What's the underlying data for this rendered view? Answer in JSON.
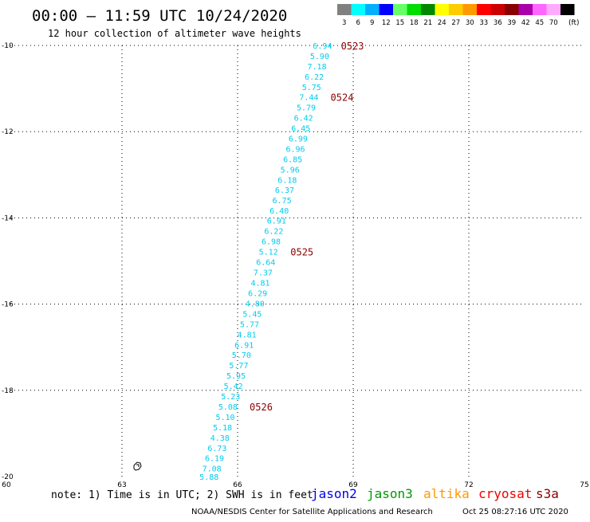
{
  "header": {
    "title": "00:00 – 11:59 UTC 10/24/2020",
    "subtitle": "12 hour collection of altimeter wave heights"
  },
  "color_scale": {
    "unit_label": "(ft)",
    "entries": [
      {
        "label": "3",
        "color": "#808080"
      },
      {
        "label": "6",
        "color": "#00ffff"
      },
      {
        "label": "9",
        "color": "#00b0ff"
      },
      {
        "label": "12",
        "color": "#0000ff"
      },
      {
        "label": "15",
        "color": "#66ff66"
      },
      {
        "label": "18",
        "color": "#00dd00"
      },
      {
        "label": "21",
        "color": "#008800"
      },
      {
        "label": "24",
        "color": "#ffff00"
      },
      {
        "label": "27",
        "color": "#ffcc00"
      },
      {
        "label": "30",
        "color": "#ff9900"
      },
      {
        "label": "33",
        "color": "#ff0000"
      },
      {
        "label": "36",
        "color": "#cc0000"
      },
      {
        "label": "39",
        "color": "#880000"
      },
      {
        "label": "42",
        "color": "#aa00aa"
      },
      {
        "label": "45",
        "color": "#ff66ff"
      },
      {
        "label": "70",
        "color": "#ffaaff"
      },
      {
        "label": "",
        "color": "#000000"
      }
    ]
  },
  "chart_data": {
    "type": "scatter",
    "xlim": [
      60,
      75
    ],
    "ylim": [
      -20,
      -10
    ],
    "x_ticks": [
      {
        "value": 60,
        "label": "60"
      },
      {
        "value": 63,
        "label": "63"
      },
      {
        "value": 66,
        "label": "66"
      },
      {
        "value": 69,
        "label": "69"
      },
      {
        "value": 72,
        "label": "72"
      },
      {
        "value": 75,
        "label": "75"
      }
    ],
    "y_ticks": [
      {
        "value": -10,
        "label": "-10"
      },
      {
        "value": -12,
        "label": "-12"
      },
      {
        "value": -14,
        "label": "-14"
      },
      {
        "value": -16,
        "label": "-16"
      },
      {
        "value": -18,
        "label": "-18"
      },
      {
        "value": -20,
        "label": "-20"
      }
    ],
    "grid": true,
    "wave_color": "#00ccee",
    "time_color": "#8b0000",
    "wave_heights": [
      {
        "lon": 68.2,
        "lat": -10.0,
        "label": "6.94"
      },
      {
        "lon": 68.13,
        "lat": -10.24,
        "label": "5.90"
      },
      {
        "lon": 68.06,
        "lat": -10.48,
        "label": "7.18"
      },
      {
        "lon": 67.99,
        "lat": -10.72,
        "label": "6.22"
      },
      {
        "lon": 67.92,
        "lat": -10.96,
        "label": "5.75"
      },
      {
        "lon": 67.85,
        "lat": -11.19,
        "label": "7.44"
      },
      {
        "lon": 67.78,
        "lat": -11.43,
        "label": "5.79"
      },
      {
        "lon": 67.71,
        "lat": -11.67,
        "label": "6.42"
      },
      {
        "lon": 67.64,
        "lat": -11.91,
        "label": "6.45"
      },
      {
        "lon": 67.57,
        "lat": -12.15,
        "label": "6.99"
      },
      {
        "lon": 67.5,
        "lat": -12.39,
        "label": "6.96"
      },
      {
        "lon": 67.43,
        "lat": -12.63,
        "label": "6.85"
      },
      {
        "lon": 67.36,
        "lat": -12.87,
        "label": "5.96"
      },
      {
        "lon": 67.29,
        "lat": -13.11,
        "label": "6.18"
      },
      {
        "lon": 67.22,
        "lat": -13.35,
        "label": "6.37"
      },
      {
        "lon": 67.15,
        "lat": -13.59,
        "label": "6.75"
      },
      {
        "lon": 67.08,
        "lat": -13.83,
        "label": "6.40"
      },
      {
        "lon": 67.01,
        "lat": -14.06,
        "label": "6.91"
      },
      {
        "lon": 66.94,
        "lat": -14.3,
        "label": "6.22"
      },
      {
        "lon": 66.87,
        "lat": -14.54,
        "label": "6.98"
      },
      {
        "lon": 66.8,
        "lat": -14.78,
        "label": "5.12"
      },
      {
        "lon": 66.73,
        "lat": -15.02,
        "label": "6.64"
      },
      {
        "lon": 66.66,
        "lat": -15.26,
        "label": "7.37"
      },
      {
        "lon": 66.59,
        "lat": -15.5,
        "label": "4.81"
      },
      {
        "lon": 66.52,
        "lat": -15.74,
        "label": "6.29"
      },
      {
        "lon": 66.45,
        "lat": -15.98,
        "label": "4.80"
      },
      {
        "lon": 66.38,
        "lat": -16.22,
        "label": "5.45"
      },
      {
        "lon": 66.31,
        "lat": -16.46,
        "label": "5.77"
      },
      {
        "lon": 66.24,
        "lat": -16.7,
        "label": "4.81"
      },
      {
        "lon": 66.17,
        "lat": -16.94,
        "label": "6.91"
      },
      {
        "lon": 66.1,
        "lat": -17.17,
        "label": "5.70"
      },
      {
        "lon": 66.03,
        "lat": -17.41,
        "label": "5.77"
      },
      {
        "lon": 65.96,
        "lat": -17.65,
        "label": "5.95"
      },
      {
        "lon": 65.89,
        "lat": -17.89,
        "label": "5.42"
      },
      {
        "lon": 65.82,
        "lat": -18.13,
        "label": "5.23"
      },
      {
        "lon": 65.75,
        "lat": -18.37,
        "label": "5.08"
      },
      {
        "lon": 65.68,
        "lat": -18.61,
        "label": "5.10"
      },
      {
        "lon": 65.61,
        "lat": -18.85,
        "label": "5.18"
      },
      {
        "lon": 65.54,
        "lat": -19.09,
        "label": "4.38"
      },
      {
        "lon": 65.47,
        "lat": -19.33,
        "label": "6.73"
      },
      {
        "lon": 65.4,
        "lat": -19.57,
        "label": "6.19"
      },
      {
        "lon": 65.33,
        "lat": -19.81,
        "label": "7.08"
      },
      {
        "lon": 65.26,
        "lat": -20.0,
        "label": "5.88"
      }
    ],
    "pass_times": [
      {
        "lon": 68.98,
        "lat": -10.0,
        "label": "0523"
      },
      {
        "lon": 68.71,
        "lat": -11.19,
        "label": "0524"
      },
      {
        "lon": 67.67,
        "lat": -14.78,
        "label": "0525"
      },
      {
        "lon": 66.61,
        "lat": -18.37,
        "label": "0526"
      }
    ]
  },
  "footer": {
    "note": "note: 1) Time is in UTC; 2) SWH is in feet",
    "satellites": [
      {
        "name": "jason2",
        "color": "#0000ee"
      },
      {
        "name": "jason3",
        "color": "#009900"
      },
      {
        "name": "altika",
        "color": "#ff9900"
      },
      {
        "name": "cryosat",
        "color": "#ee0000"
      },
      {
        "name": "s3a",
        "color": "#8b0000"
      }
    ],
    "credit": "NOAA/NESDIS Center for Satellite Applications and Research",
    "timestamp": "Oct 25 08:27:16 UTC 2020"
  }
}
